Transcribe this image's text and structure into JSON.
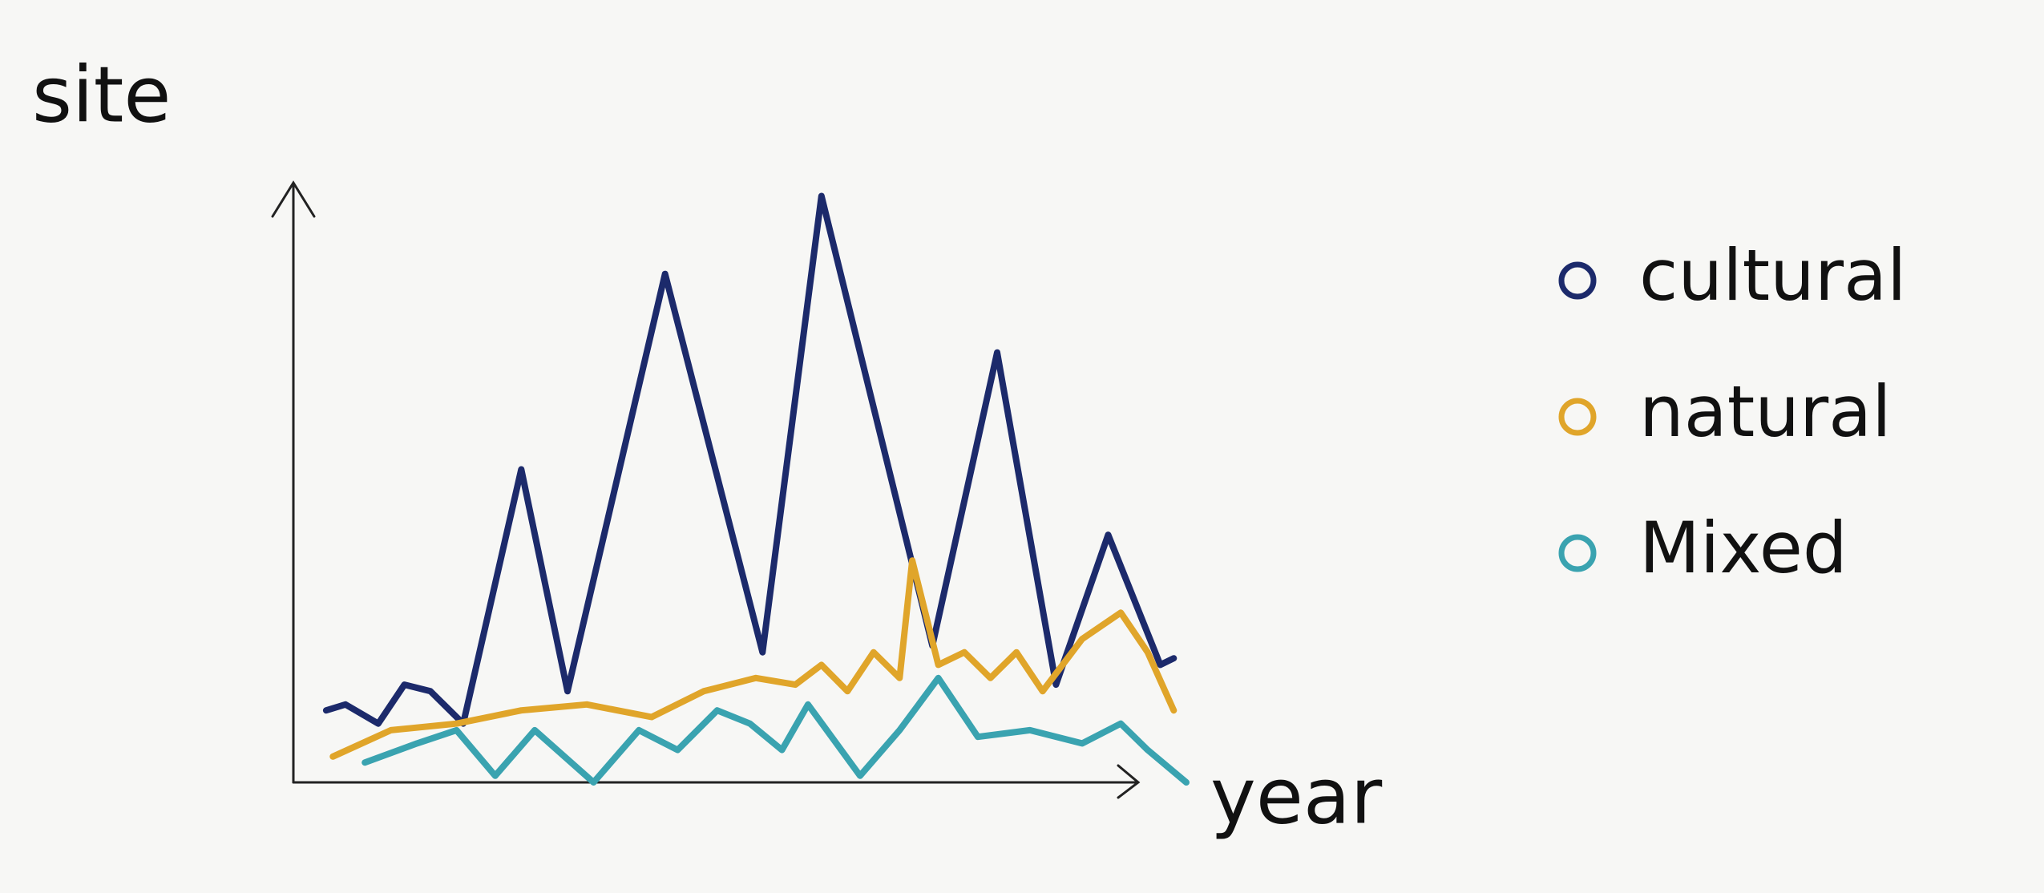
{
  "chart_data": {
    "type": "line",
    "y_label": "site",
    "x_label": "year",
    "xlim": [
      0,
      100
    ],
    "ylim": [
      0,
      100
    ],
    "series": [
      {
        "name": "cultural",
        "color": "#1c2a6b",
        "x": [
          3.9,
          6.2,
          10.1,
          13.2,
          16.3,
          20.2,
          27.1,
          32.6,
          44.2,
          55.8,
          62.8,
          76,
          83.7,
          90.7,
          96.9,
          103.1,
          104.7
        ],
        "values": [
          12,
          13,
          9.8,
          16.3,
          15.2,
          9.8,
          52.2,
          15.2,
          84.8,
          21.7,
          97.8,
          22.8,
          71.7,
          16.3,
          41.3,
          19.6,
          20.7
        ]
      },
      {
        "name": "natural",
        "color": "#e0a52a",
        "x": [
          4.7,
          11.6,
          19.4,
          27.1,
          34.9,
          42.6,
          48.8,
          55,
          59.7,
          62.8,
          65.9,
          69,
          72.1,
          73.6,
          76.7,
          79.8,
          82.9,
          86,
          89.1,
          93.8,
          98.4,
          101.6,
          104.7
        ],
        "values": [
          4.3,
          8.7,
          9.8,
          12,
          13,
          10.9,
          15.2,
          17.4,
          16.3,
          19.6,
          15.2,
          21.7,
          17.4,
          37,
          19.6,
          21.7,
          17.4,
          21.7,
          15.2,
          23.9,
          28.3,
          21.7,
          12
        ]
      },
      {
        "name": "Mixed",
        "color": "#3aa3b0",
        "x": [
          8.5,
          14.7,
          19.4,
          24,
          28.7,
          35.7,
          41.1,
          45.7,
          50.4,
          54.3,
          58.1,
          61.2,
          67.4,
          72.1,
          76.7,
          81.4,
          87.6,
          93.8,
          98.4,
          101.6,
          106.2
        ],
        "values": [
          3.3,
          6.5,
          8.7,
          1.1,
          8.7,
          0,
          8.7,
          5.4,
          12,
          9.8,
          5.4,
          13,
          1.1,
          8.7,
          17.4,
          7.6,
          8.7,
          6.5,
          9.8,
          5.4,
          0
        ]
      }
    ]
  }
}
